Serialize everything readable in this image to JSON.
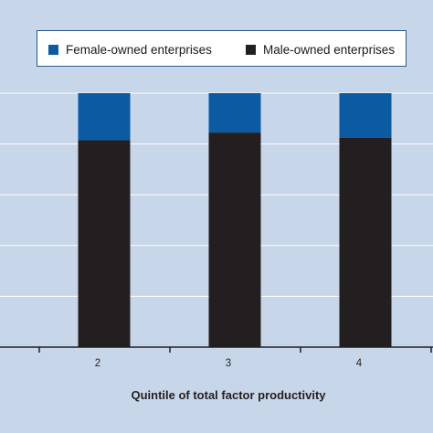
{
  "chart_data": {
    "type": "bar",
    "stacked": true,
    "categories": [
      "2",
      "3",
      "4"
    ],
    "series": [
      {
        "name": "Male-owned enterprises",
        "values": [
          81.5,
          84.5,
          82.5
        ],
        "color": "#231f20"
      },
      {
        "name": "Female-owned enterprises",
        "values": [
          18.5,
          15.5,
          17.5
        ],
        "color": "#0b5aa2"
      }
    ],
    "xlabel": "Quintile of total factor productivity",
    "ylabel": "",
    "ylim": [
      0,
      100
    ],
    "grid": true,
    "legend_position": "top"
  },
  "colors": {
    "background": "#c8d6e9",
    "gridline": "#ffffff",
    "axis": "#231f20",
    "legend_border": "#2a5a8f"
  }
}
